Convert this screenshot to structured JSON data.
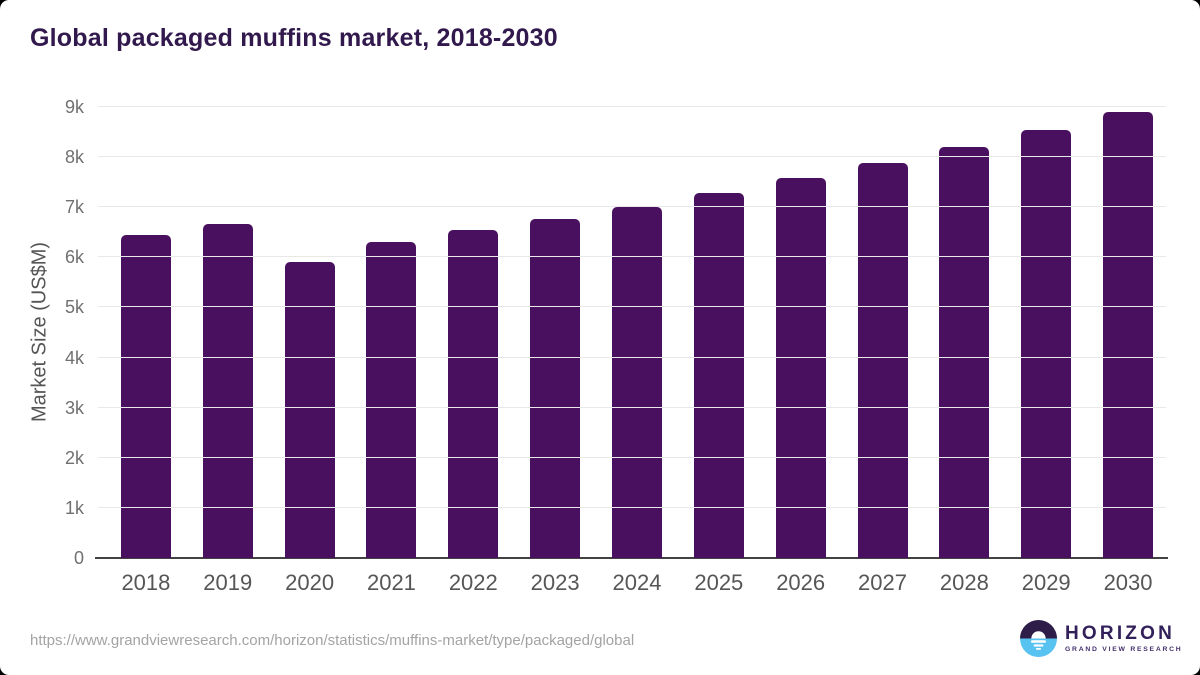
{
  "chart_data": {
    "type": "bar",
    "title": "Global packaged muffins market, 2018-2030",
    "ylabel": "Market Size (US$M)",
    "categories": [
      "2018",
      "2019",
      "2020",
      "2021",
      "2022",
      "2023",
      "2024",
      "2025",
      "2026",
      "2027",
      "2028",
      "2029",
      "2030"
    ],
    "values": [
      6450,
      6660,
      5910,
      6310,
      6540,
      6760,
      7000,
      7290,
      7580,
      7890,
      8210,
      8550,
      8900
    ],
    "ylim": [
      0,
      9000
    ],
    "ytick_step": 1000,
    "ytick_labels": [
      "0",
      "1k",
      "2k",
      "3k",
      "4k",
      "5k",
      "6k",
      "7k",
      "8k",
      "9k"
    ],
    "grid": "horizontal",
    "legend": "none",
    "bar_color": "#4a1060"
  },
  "footer": {
    "source_url": "https://www.grandviewresearch.com/horizon/statistics/muffins-market/type/packaged/global",
    "logo": {
      "name": "HORIZON",
      "subtitle": "GRAND VIEW RESEARCH",
      "icon": "horizon-sun-over-water-icon",
      "icon_dark_color": "#2e1d49",
      "icon_blue_color": "#58c3f0"
    }
  },
  "colors": {
    "title_text": "#32194d",
    "bar": "#4a1060",
    "gridline": "#e8e8e8",
    "axis_line": "#424242",
    "tick_text": "#707070",
    "background": "#ffffff"
  }
}
